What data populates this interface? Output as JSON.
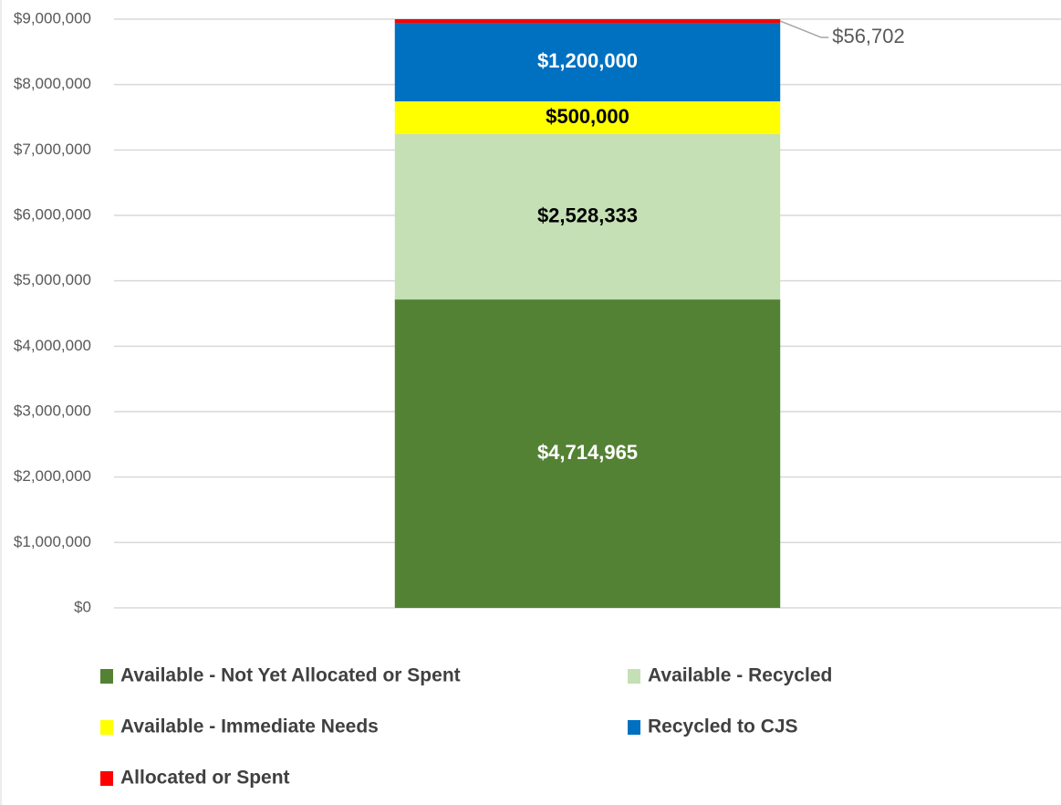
{
  "chart_data": {
    "type": "stacked_bar",
    "categories": [
      null
    ],
    "series": [
      {
        "name": "Available - Not Yet Allocated or Spent",
        "color": "#548235",
        "values": [
          4714965
        ],
        "value_labels": [
          "$4,714,965"
        ]
      },
      {
        "name": "Available - Recycled",
        "color": "#c5e0b4",
        "values": [
          2528333
        ],
        "value_labels": [
          "$2,528,333"
        ]
      },
      {
        "name": "Available - Immediate Needs",
        "color": "#ffff00",
        "values": [
          500000
        ],
        "value_labels": [
          "$500,000"
        ]
      },
      {
        "name": "Recycled to CJS",
        "color": "#0070c0",
        "values": [
          1200000
        ],
        "value_labels": [
          "$1,200,000"
        ]
      },
      {
        "name": "Allocated or Spent",
        "color": "#ff0000",
        "values": [
          56702
        ],
        "value_labels": [
          "$56,702"
        ]
      }
    ],
    "ylim": [
      0,
      9000000
    ],
    "yticks": [
      {
        "value": 0,
        "label": "$0"
      },
      {
        "value": 1000000,
        "label": "$1,000,000"
      },
      {
        "value": 2000000,
        "label": "$2,000,000"
      },
      {
        "value": 3000000,
        "label": "$3,000,000"
      },
      {
        "value": 4000000,
        "label": "$4,000,000"
      },
      {
        "value": 5000000,
        "label": "$5,000,000"
      },
      {
        "value": 6000000,
        "label": "$6,000,000"
      },
      {
        "value": 7000000,
        "label": "$7,000,000"
      },
      {
        "value": 8000000,
        "label": "$8,000,000"
      },
      {
        "value": 9000000,
        "label": "$9,000,000"
      }
    ],
    "grid": true,
    "legend": "bottom"
  }
}
